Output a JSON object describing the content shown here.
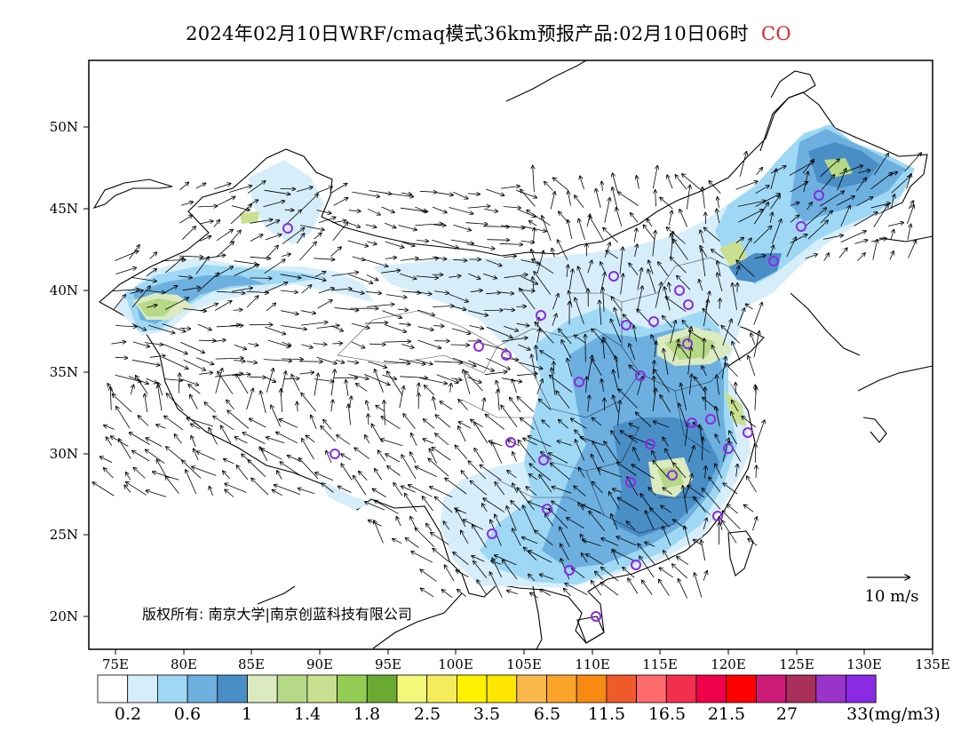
{
  "header": {
    "title": "2024年02月10日WRF/cmaq模式36km预报产品:02月10日06时",
    "species": "CO",
    "species_color": "#e0262a"
  },
  "axes": {
    "lat_ticks": [
      "50N",
      "45N",
      "40N",
      "35N",
      "30N",
      "25N",
      "20N"
    ],
    "lon_ticks": [
      "75E",
      "80E",
      "85E",
      "90E",
      "95E",
      "100E",
      "105E",
      "110E",
      "115E",
      "120E",
      "125E",
      "130E",
      "135E"
    ],
    "lon_range": [
      73,
      135
    ],
    "lat_range": [
      18,
      54
    ]
  },
  "wind_reference": {
    "label": "10 m/s"
  },
  "copyright": {
    "text": "版权所有: 南京大学|南京创蓝科技有限公司"
  },
  "colorbar": {
    "colors": [
      "#ffffff",
      "#d6eefa",
      "#9fd8f4",
      "#6db0e0",
      "#4a8ec6",
      "#dbeac0",
      "#b5d986",
      "#c8e090",
      "#92cc52",
      "#6aaa32",
      "#f2f87a",
      "#f4ec5a",
      "#fff200",
      "#fde600",
      "#f8b84a",
      "#faa42a",
      "#f78a12",
      "#f05a2a",
      "#fc6a6e",
      "#f2304e",
      "#f0004a",
      "#ff0000",
      "#cc1a78",
      "#a8305a",
      "#9a34c8",
      "#8a2ae4"
    ],
    "labels": [
      "0.2",
      "0.6",
      "1",
      "1.4",
      "1.8",
      "2.5",
      "3.5",
      "6.5",
      "11.5",
      "16.5",
      "21.5",
      "27",
      "33(mg/m3)"
    ]
  }
}
